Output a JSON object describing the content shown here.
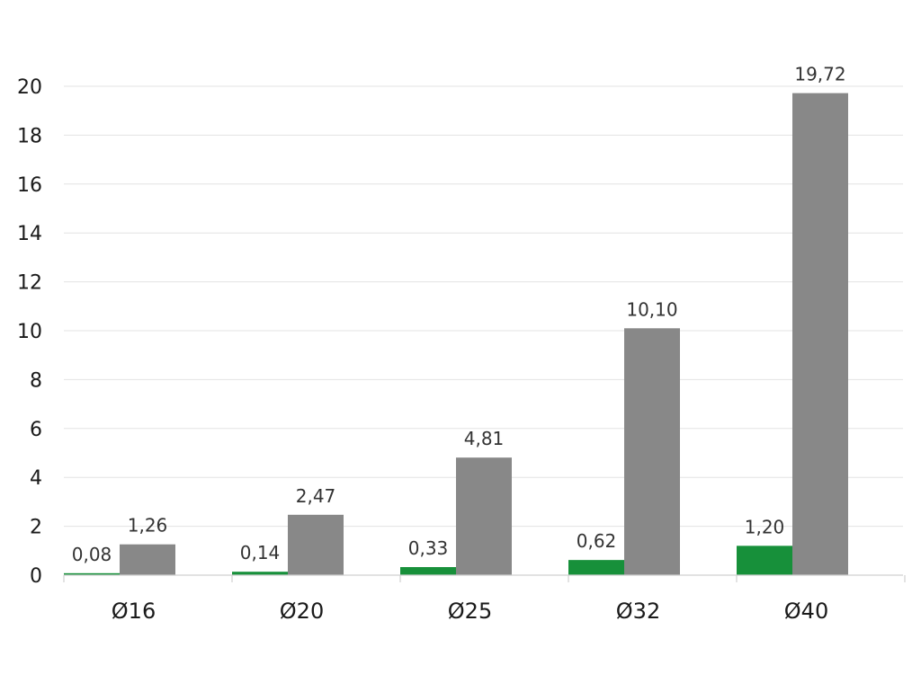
{
  "chart_data": {
    "type": "bar",
    "categories": [
      "Ø16",
      "Ø20",
      "Ø25",
      "Ø32",
      "Ø40"
    ],
    "series": [
      {
        "values": [
          0.08,
          0.14,
          0.33,
          0.62,
          1.2
        ],
        "labels": [
          "0,08",
          "0,14",
          "0,33",
          "0,62",
          "1,20"
        ],
        "color": "#17903a"
      },
      {
        "values": [
          1.26,
          2.47,
          4.81,
          10.1,
          19.72
        ],
        "labels": [
          "1,26",
          "2,47",
          "4,81",
          "10,10",
          "19,72"
        ],
        "color": "#888888"
      }
    ],
    "ylim": [
      0,
      20
    ],
    "yticks": [
      0,
      2,
      4,
      6,
      8,
      10,
      12,
      14,
      16,
      18,
      20
    ],
    "grid": true,
    "title": "",
    "xlabel": "",
    "ylabel": ""
  }
}
